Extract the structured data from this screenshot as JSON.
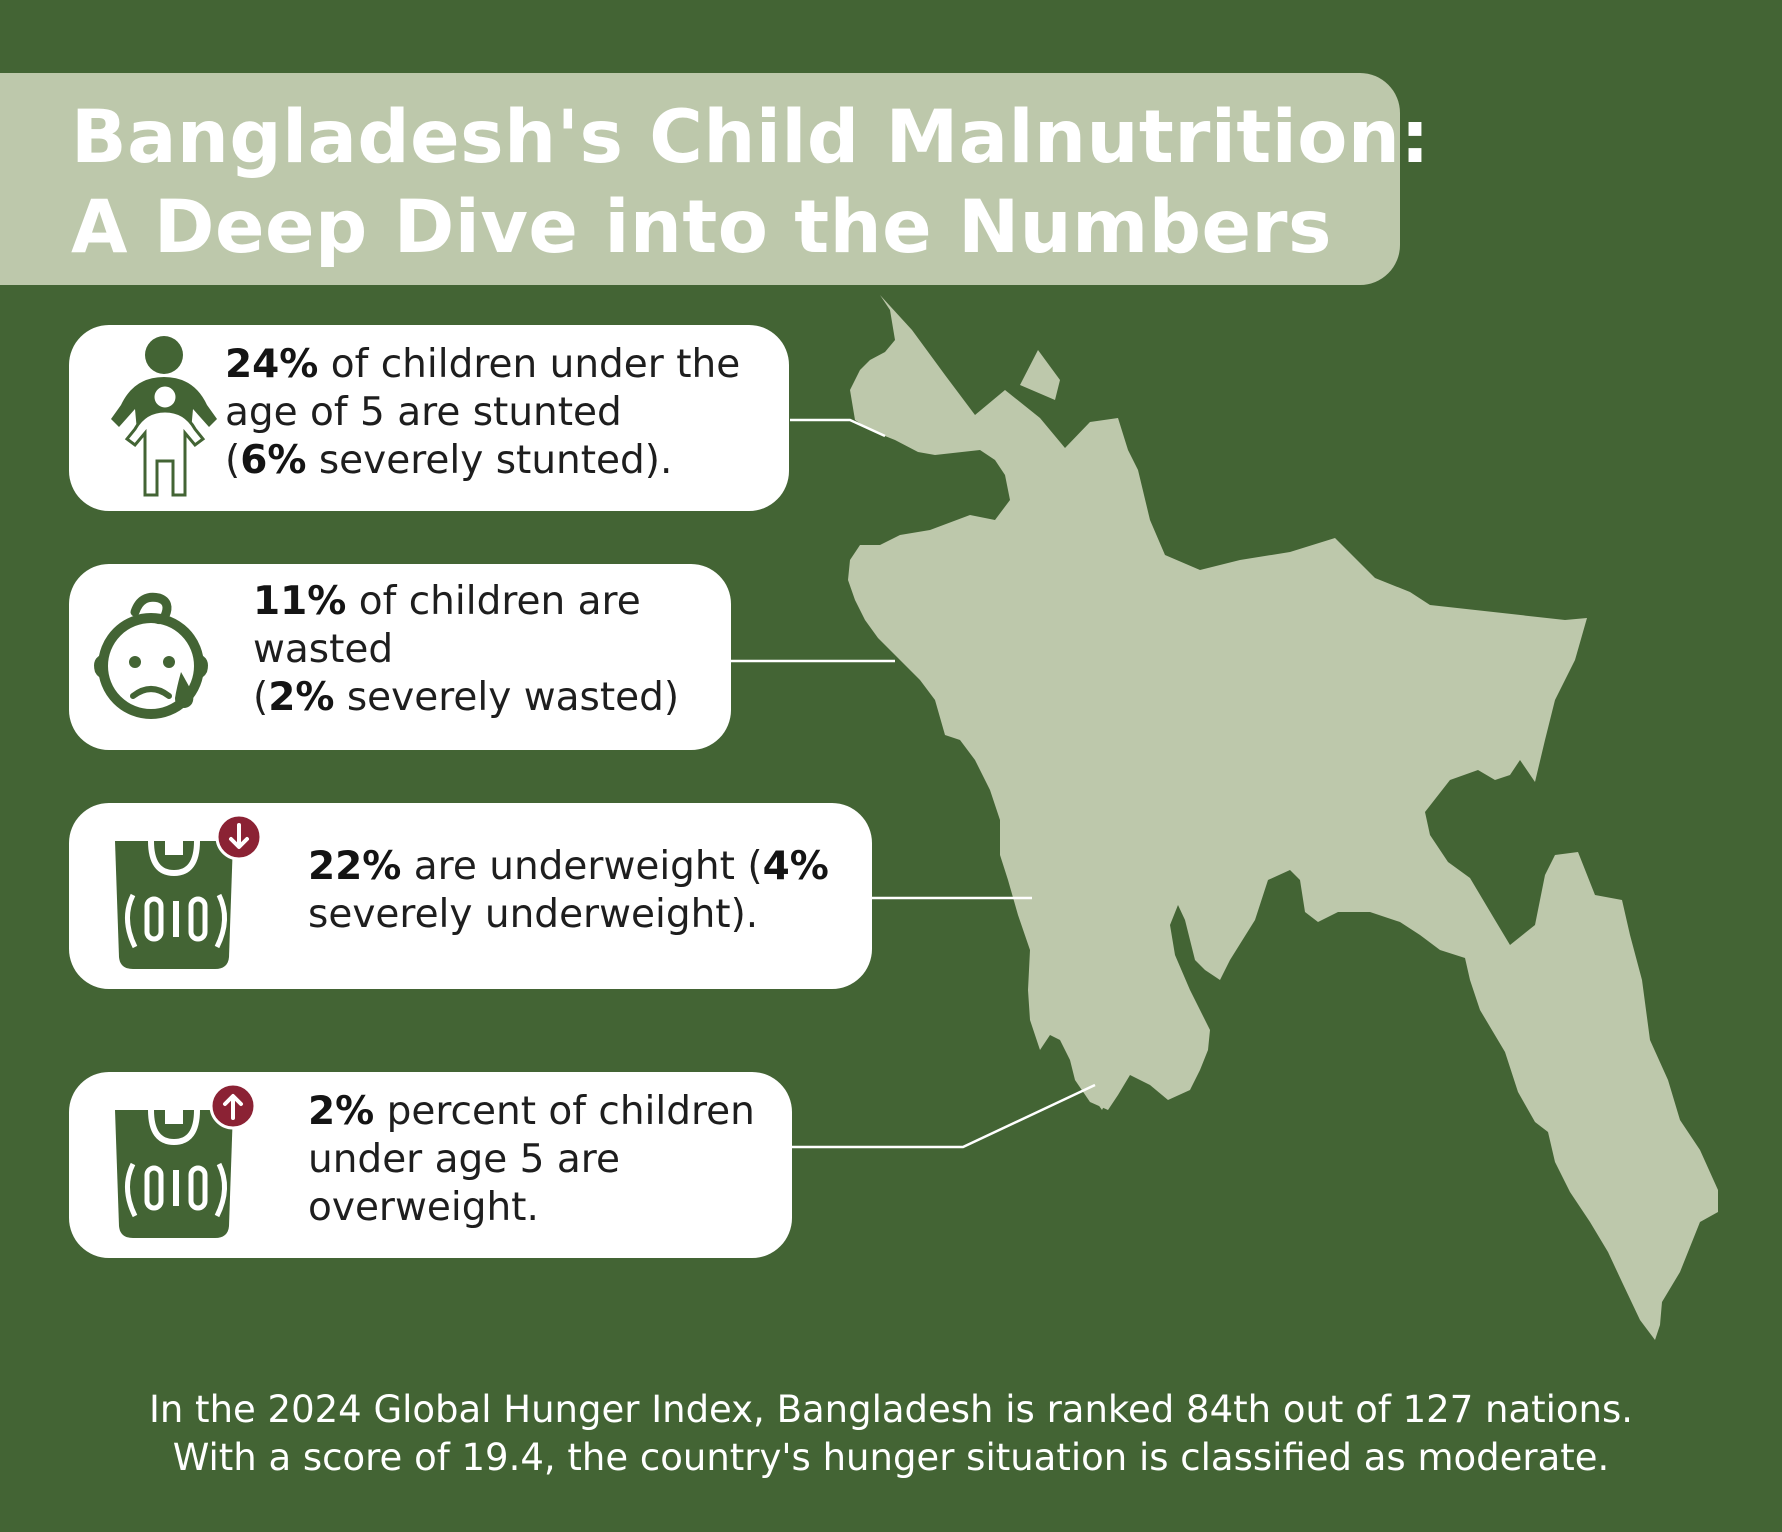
{
  "title": {
    "line1": "Bangladesh's Child Malnutrition:",
    "line2": "A Deep Dive into the Numbers"
  },
  "cards": [
    {
      "icon": "child-height-icon",
      "lines": [
        {
          "bold": "24%",
          "rest": " of children under the"
        },
        {
          "bold": "",
          "rest": "age of 5 are stunted"
        },
        {
          "pre": "(",
          "bold": "6%",
          "rest": "  severely stunted)."
        }
      ]
    },
    {
      "icon": "crying-baby-icon",
      "lines": [
        {
          "bold": "11%",
          "rest": " of children are"
        },
        {
          "bold": "",
          "rest": "wasted"
        },
        {
          "pre": "(",
          "bold": "2%",
          "rest": " severely wasted)"
        }
      ]
    },
    {
      "icon": "scale-down-icon",
      "lines": [
        {
          "bold": "22%",
          "rest": " are underweight (",
          "bold2": "4%"
        },
        {
          "bold": "",
          "rest": "severely underweight)."
        }
      ]
    },
    {
      "icon": "scale-up-icon",
      "lines": [
        {
          "bold": "2%",
          "rest": " percent of children"
        },
        {
          "bold": "",
          "rest": "under age 5 are"
        },
        {
          "bold": "",
          "rest": "overweight."
        }
      ]
    }
  ],
  "footer": {
    "line1": "In the 2024 Global Hunger Index, Bangladesh is ranked 84th out of 127 nations.",
    "line2": "With a score of 19.4, the country's hunger situation is classified as moderate."
  },
  "colors": {
    "background": "#436434",
    "map_fill": "#bdc8ab",
    "icon_green": "#436434",
    "badge_red": "#8b2234"
  }
}
